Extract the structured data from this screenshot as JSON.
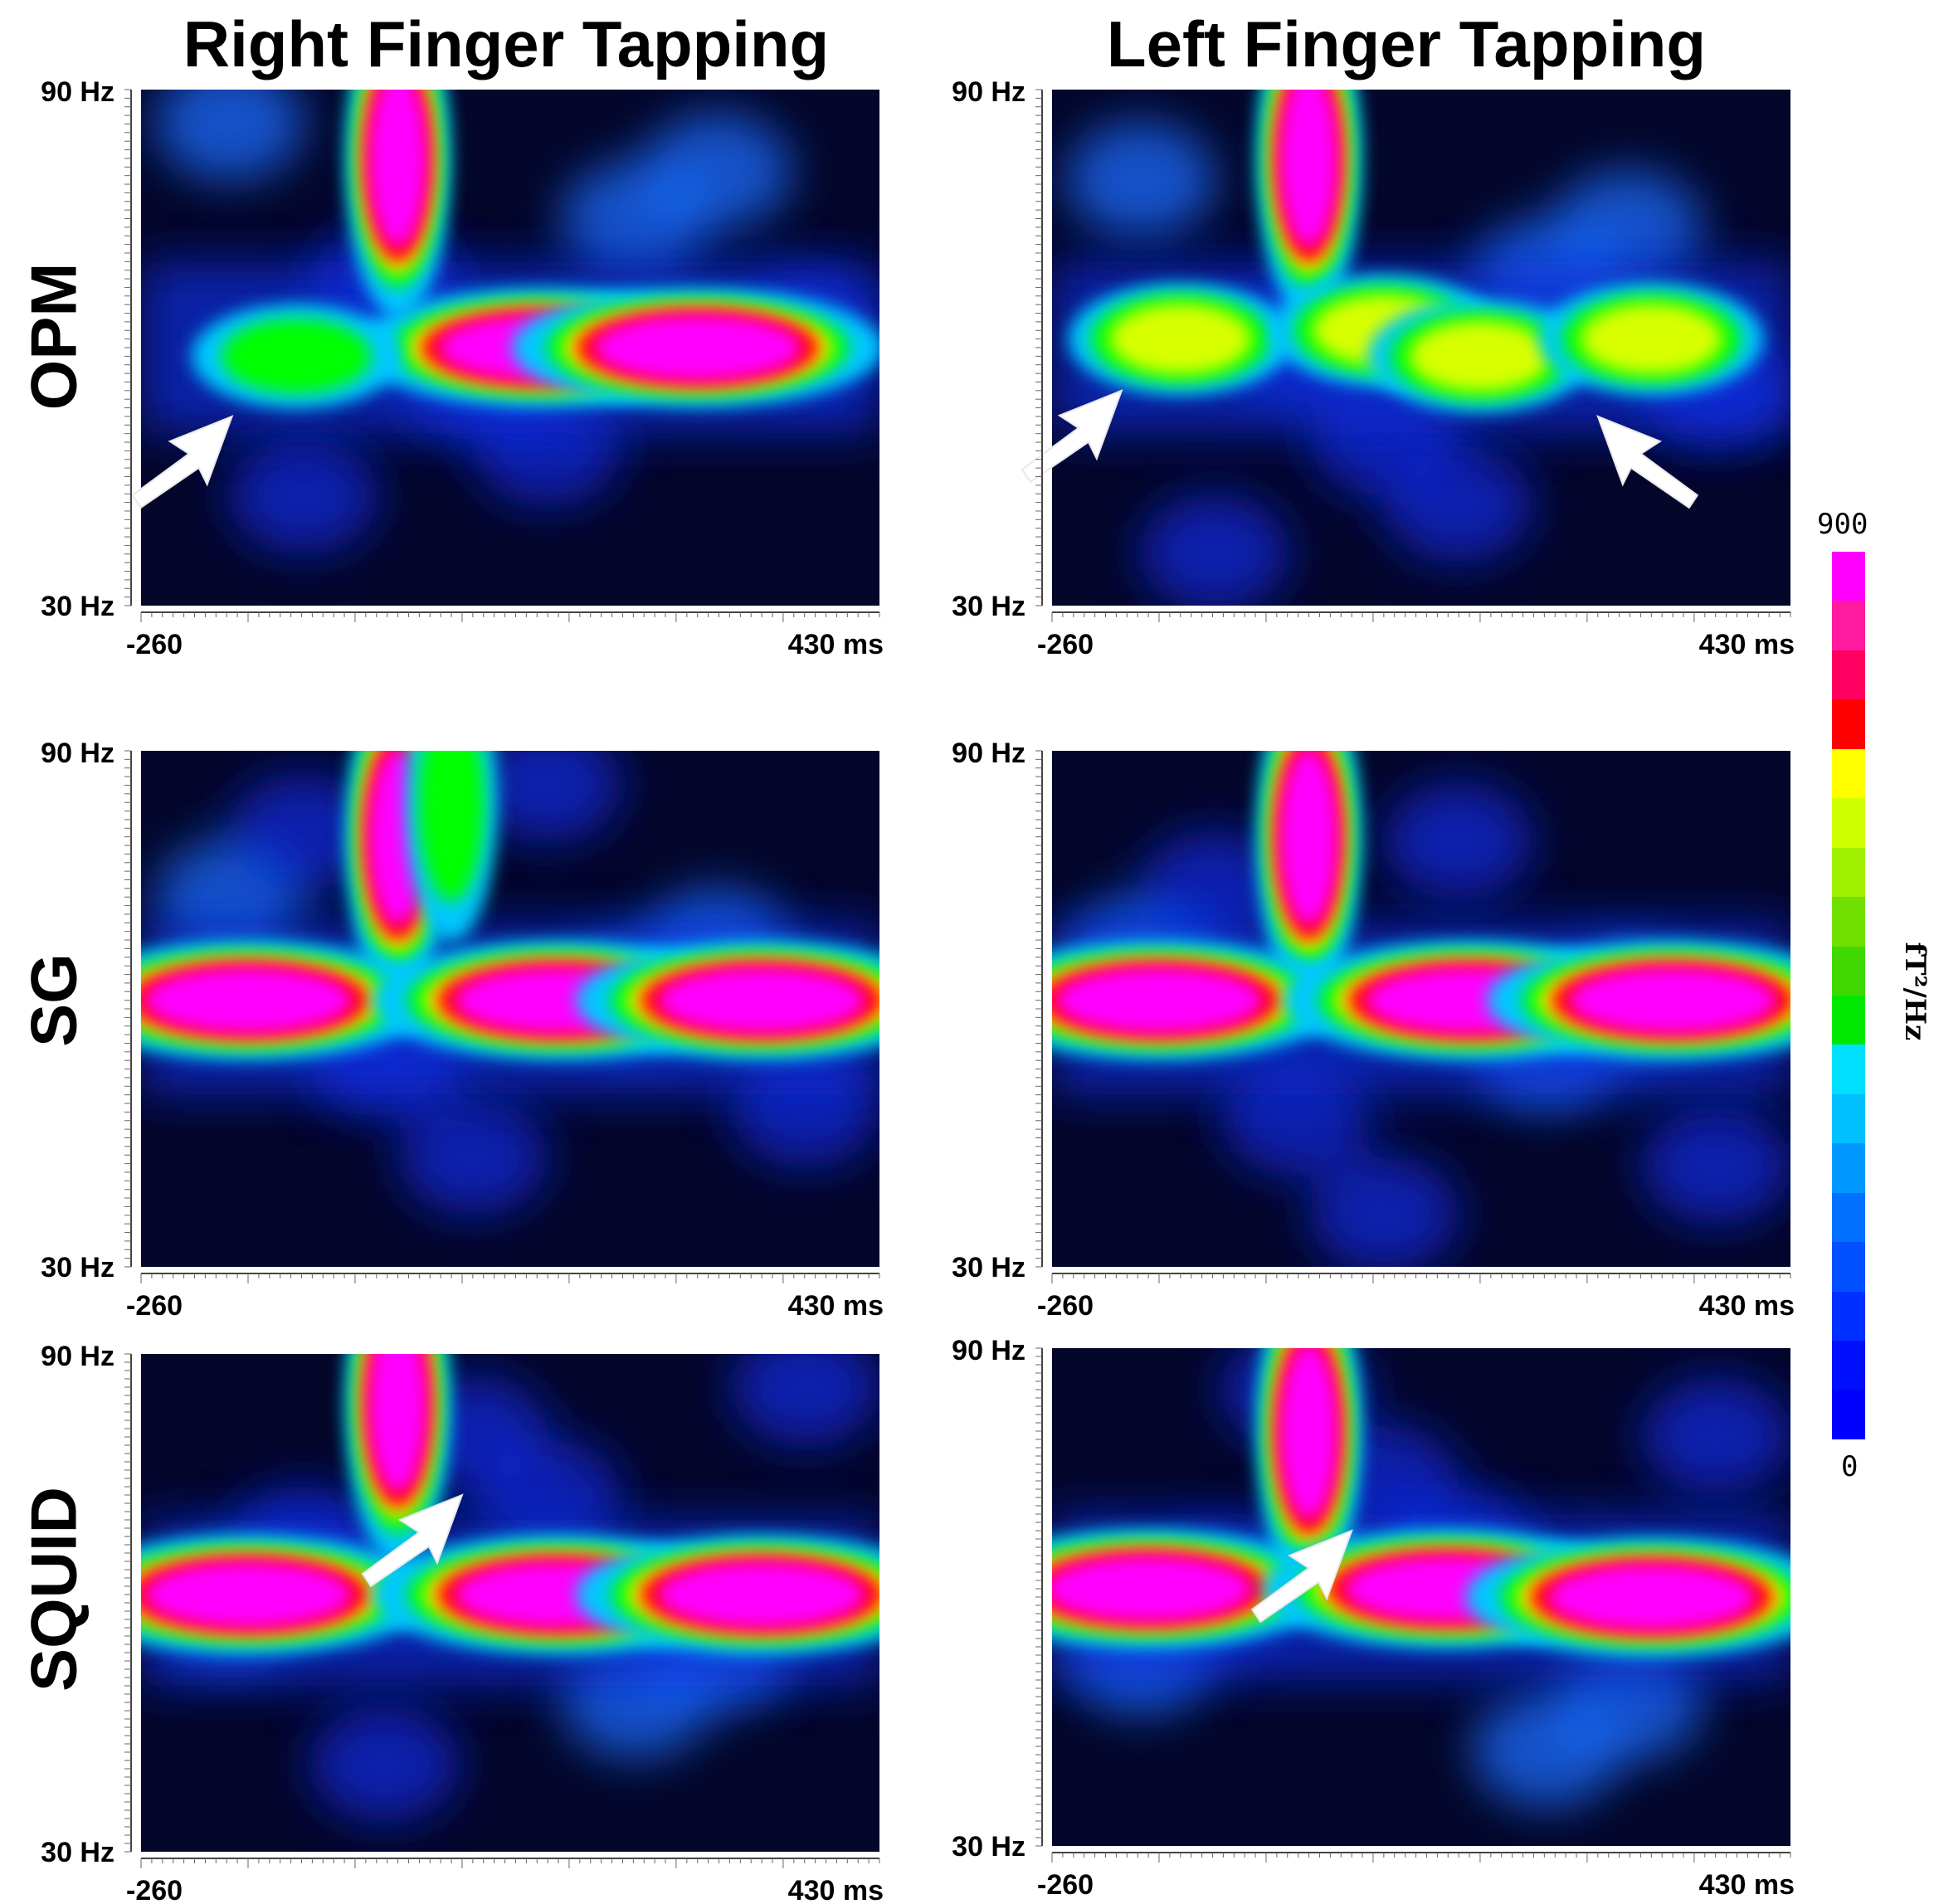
{
  "figure": {
    "column_titles": [
      "Right Finger Tapping",
      "Left Finger Tapping"
    ],
    "row_labels": [
      "OPM",
      "SG",
      "SQUID"
    ],
    "colorbar": {
      "max_label": "900",
      "min_label": "0",
      "unit": "fT²/Hz",
      "range": [
        0,
        900
      ],
      "colors": [
        "#000000",
        "#0000ff",
        "#00c8ff",
        "#00ff00",
        "#ffff00",
        "#ff0000",
        "#ff00ff"
      ]
    }
  },
  "chart_data": [
    {
      "type": "heatmap",
      "modality": "OPM",
      "condition": "Right Finger Tapping",
      "x_tick_labels": [
        "-260",
        "430 ms"
      ],
      "y_tick_labels": [
        "90 Hz",
        "30 Hz"
      ],
      "xlim": [
        -260,
        430
      ],
      "ylim": [
        30,
        90
      ],
      "blobs": [
        {
          "t": -20,
          "f": 82,
          "intensity": 900
        },
        {
          "t": 115,
          "f": 60,
          "intensity": 900
        },
        {
          "t": 260,
          "f": 60,
          "intensity": 900
        },
        {
          "t": -115,
          "f": 59,
          "intensity": 500
        }
      ],
      "arrows": [
        {
          "t": -175,
          "f": 52
        }
      ]
    },
    {
      "type": "heatmap",
      "modality": "OPM",
      "condition": "Left Finger Tapping",
      "x_tick_labels": [
        "-260",
        "430 ms"
      ],
      "y_tick_labels": [
        "90 Hz",
        "30 Hz"
      ],
      "xlim": [
        -260,
        430
      ],
      "ylim": [
        30,
        90
      ],
      "blobs": [
        {
          "t": -20,
          "f": 82,
          "intensity": 900
        },
        {
          "t": -140,
          "f": 61,
          "intensity": 700
        },
        {
          "t": 50,
          "f": 62,
          "intensity": 650
        },
        {
          "t": 140,
          "f": 59,
          "intensity": 700
        },
        {
          "t": 300,
          "f": 61,
          "intensity": 600
        }
      ],
      "arrows": [
        {
          "t": -195,
          "f": 55
        },
        {
          "t": 250,
          "f": 52
        }
      ]
    },
    {
      "type": "heatmap",
      "modality": "SG",
      "condition": "Right Finger Tapping",
      "x_tick_labels": [
        "-260",
        "430 ms"
      ],
      "y_tick_labels": [
        "90 Hz",
        "30 Hz"
      ],
      "xlim": [
        -260,
        430
      ],
      "ylim": [
        30,
        90
      ],
      "blobs": [
        {
          "t": -20,
          "f": 80,
          "intensity": 900
        },
        {
          "t": -160,
          "f": 61,
          "intensity": 900
        },
        {
          "t": 130,
          "f": 61,
          "intensity": 900
        },
        {
          "t": 320,
          "f": 61,
          "intensity": 900
        },
        {
          "t": 30,
          "f": 84,
          "intensity": 450
        }
      ],
      "arrows": []
    },
    {
      "type": "heatmap",
      "modality": "SG",
      "condition": "Left Finger Tapping",
      "x_tick_labels": [
        "-260",
        "430 ms"
      ],
      "y_tick_labels": [
        "90 Hz",
        "30 Hz"
      ],
      "xlim": [
        -260,
        430
      ],
      "ylim": [
        30,
        90
      ],
      "blobs": [
        {
          "t": -20,
          "f": 80,
          "intensity": 900
        },
        {
          "t": -160,
          "f": 61,
          "intensity": 900
        },
        {
          "t": 130,
          "f": 61,
          "intensity": 900
        },
        {
          "t": 320,
          "f": 61,
          "intensity": 900
        }
      ],
      "arrows": []
    },
    {
      "type": "heatmap",
      "modality": "SQUID",
      "condition": "Right Finger Tapping",
      "x_tick_labels": [
        "-260",
        "430 ms"
      ],
      "y_tick_labels": [
        "90 Hz",
        "30 Hz"
      ],
      "xlim": [
        -260,
        430
      ],
      "ylim": [
        30,
        90
      ],
      "blobs": [
        {
          "t": -20,
          "f": 84,
          "intensity": 900
        },
        {
          "t": -160,
          "f": 61,
          "intensity": 900
        },
        {
          "t": 130,
          "f": 61,
          "intensity": 900
        },
        {
          "t": 320,
          "f": 61,
          "intensity": 900
        }
      ],
      "arrows": [
        {
          "t": 40,
          "f": 73
        }
      ]
    },
    {
      "type": "heatmap",
      "modality": "SQUID",
      "condition": "Left Finger Tapping",
      "x_tick_labels": [
        "-260",
        "430 ms"
      ],
      "y_tick_labels": [
        "90 Hz",
        "30 Hz"
      ],
      "xlim": [
        -260,
        430
      ],
      "ylim": [
        30,
        90
      ],
      "blobs": [
        {
          "t": -20,
          "f": 80,
          "intensity": 900
        },
        {
          "t": -170,
          "f": 61,
          "intensity": 900
        },
        {
          "t": 110,
          "f": 61,
          "intensity": 900
        },
        {
          "t": 300,
          "f": 60,
          "intensity": 800
        }
      ],
      "arrows": [
        {
          "t": 20,
          "f": 68
        }
      ]
    }
  ]
}
